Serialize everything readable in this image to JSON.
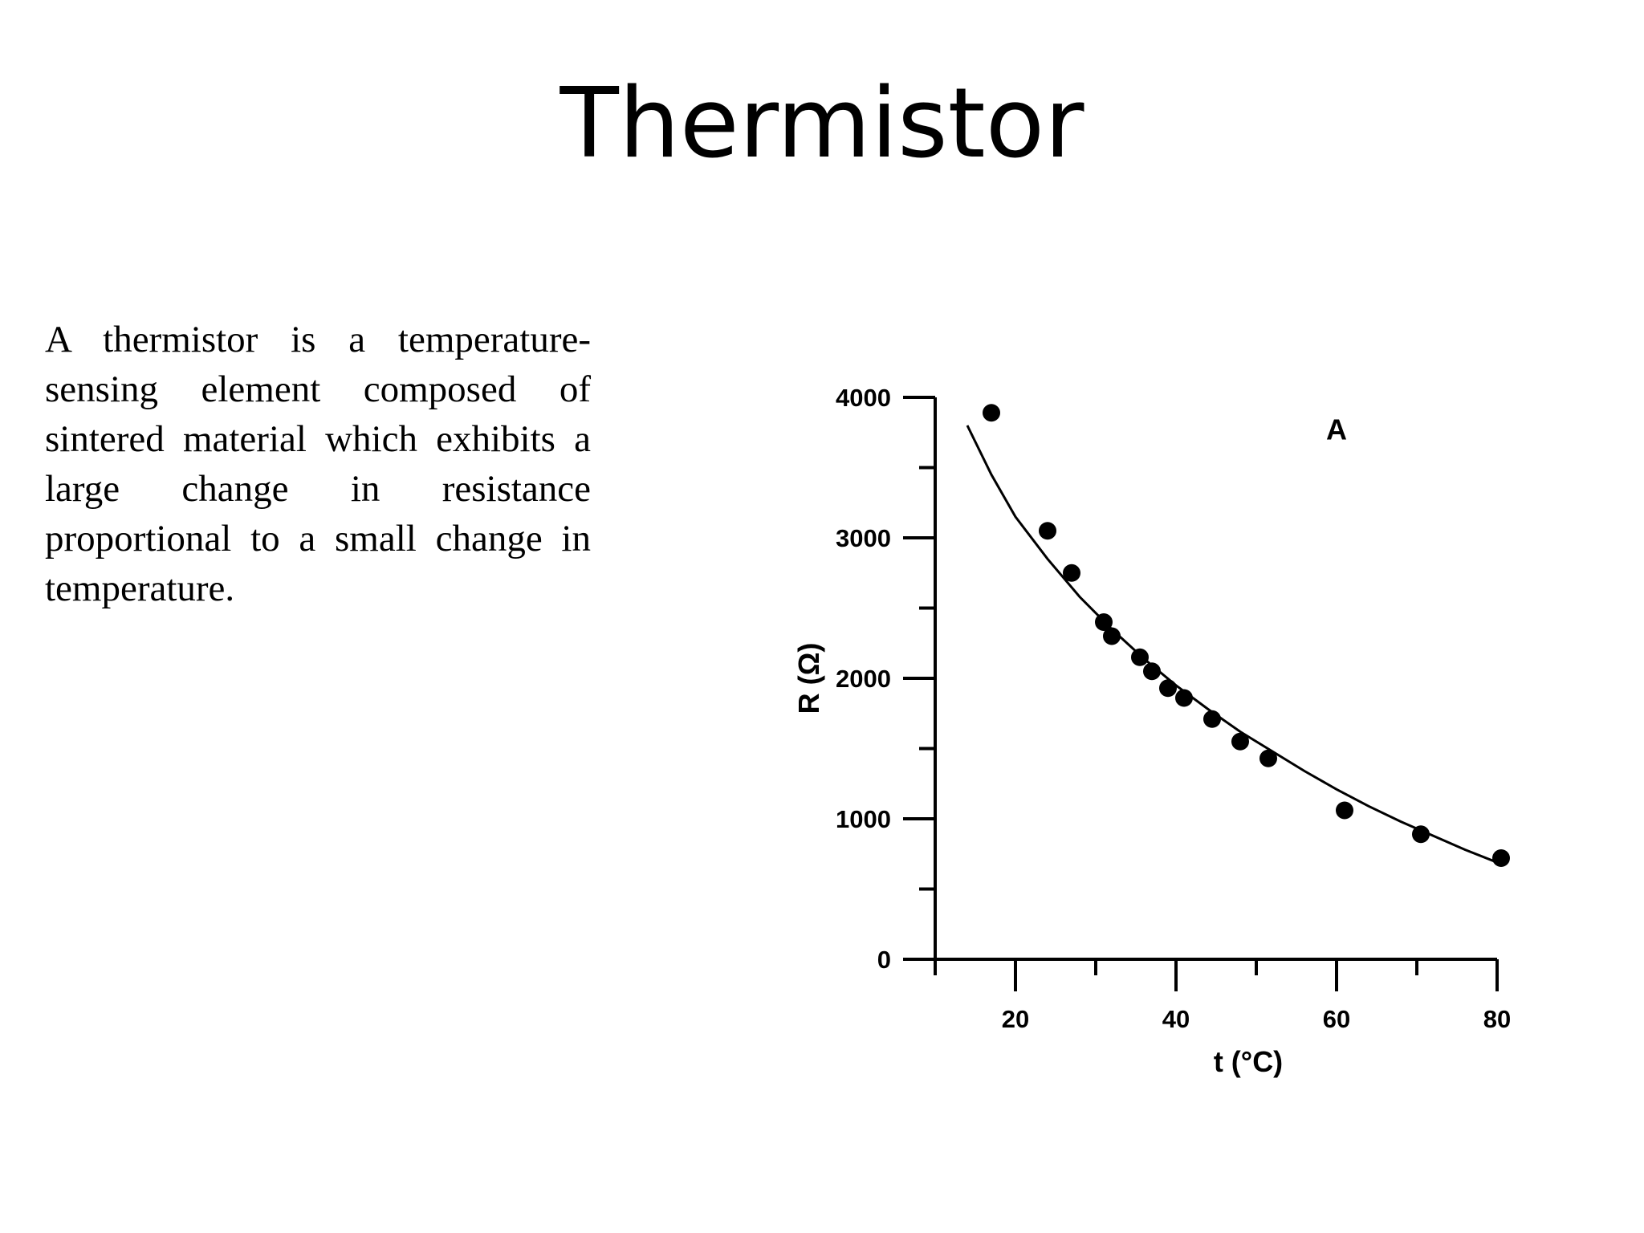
{
  "slide": {
    "title": "Thermistor",
    "body": "A thermistor is a temperature-sensing element composed of sintered material which exhibits a large change in resistance proportional to a small change in temperature."
  },
  "chart_data": {
    "type": "scatter",
    "panel_label": "A",
    "xlabel": "t (°C)",
    "ylabel": "R (Ω)",
    "xlim": [
      10,
      80
    ],
    "ylim": [
      0,
      4000
    ],
    "x_ticks": [
      20,
      40,
      60,
      80
    ],
    "y_ticks": [
      0,
      1000,
      2000,
      3000,
      4000
    ],
    "grid": false,
    "series": [
      {
        "points": [
          [
            17,
            3890
          ],
          [
            24,
            3050
          ],
          [
            27,
            2750
          ],
          [
            31,
            2400
          ],
          [
            32,
            2300
          ],
          [
            35.5,
            2150
          ],
          [
            37,
            2050
          ],
          [
            39,
            1930
          ],
          [
            41,
            1860
          ],
          [
            44.5,
            1710
          ],
          [
            48,
            1550
          ],
          [
            51.5,
            1430
          ],
          [
            61,
            1060
          ],
          [
            70.5,
            890
          ],
          [
            80.5,
            720
          ]
        ]
      }
    ],
    "fit_curve": {
      "x": [
        14,
        17,
        20,
        24,
        28,
        32,
        36,
        40,
        44,
        48,
        52,
        56,
        60,
        64,
        68,
        72,
        76,
        80
      ],
      "y": [
        3800,
        3450,
        3150,
        2850,
        2580,
        2350,
        2140,
        1950,
        1780,
        1620,
        1480,
        1340,
        1210,
        1090,
        980,
        880,
        780,
        690
      ]
    }
  }
}
